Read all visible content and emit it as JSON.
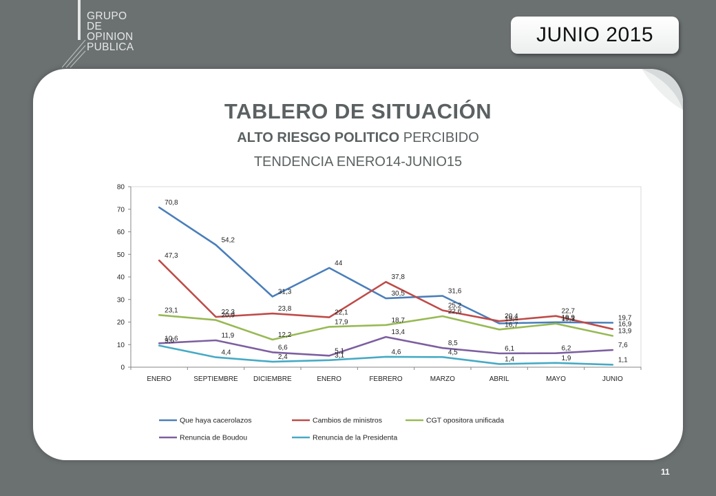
{
  "header": {
    "logo_lines": [
      "GRUPO",
      "DE",
      "OPINION",
      "PUBLICA"
    ],
    "month_label": "JUNIO 2015"
  },
  "title": {
    "main": "TABLERO DE SITUACIÓN",
    "sub_bold": "ALTO RIESGO POLITICO",
    "sub_rest": " PERCIBIDO",
    "sub2": "TENDENCIA ENERO14-JUNIO15"
  },
  "page_number": "11",
  "chart_data": {
    "type": "line",
    "categories": [
      "ENERO",
      "SEPTIEMBRE",
      "DICIEMBRE",
      "ENERO",
      "FEBRERO",
      "MARZO",
      "ABRIL",
      "MAYO",
      "JUNIO"
    ],
    "ylim": [
      0,
      80
    ],
    "yticks": [
      0,
      10,
      20,
      30,
      40,
      50,
      60,
      70,
      80
    ],
    "grid": false,
    "legend_position": "bottom",
    "series": [
      {
        "name": "Que haya cacerolazos",
        "color": "#4a7ebb",
        "values": [
          70.8,
          54.2,
          31.3,
          44,
          30.5,
          31.6,
          19.4,
          19.9,
          19.7
        ],
        "labels": [
          "70,8",
          "54,2",
          "31,3",
          "44",
          "30,5",
          "31,6",
          "19,4",
          "19,9",
          "19,7"
        ]
      },
      {
        "name": "Cambios de ministros",
        "color": "#be4b48",
        "values": [
          47.3,
          22.3,
          23.8,
          22.1,
          37.8,
          25.2,
          20.4,
          22.7,
          16.9
        ],
        "labels": [
          "47,3",
          "22,3",
          "23,8",
          "22,1",
          "37,8",
          "25,2",
          "20,4",
          "22,7",
          "16,9"
        ]
      },
      {
        "name": "CGT opositora unificada",
        "color": "#98b954",
        "values": [
          23.1,
          20.9,
          12.2,
          17.9,
          18.7,
          22.6,
          16.7,
          19.3,
          13.9
        ],
        "labels": [
          "23,1",
          "20,9",
          "12,2",
          "17,9",
          "18,7",
          "22,6",
          "16,7",
          "19,3",
          "13,9"
        ]
      },
      {
        "name": "Renuncia de Boudou",
        "color": "#7d5fa0",
        "values": [
          10.6,
          11.9,
          6.6,
          5.1,
          13.4,
          8.5,
          6.1,
          6.2,
          7.6
        ],
        "labels": [
          "10,6",
          "11,9",
          "6,6",
          "5,1",
          "13,4",
          "8,5",
          "6,1",
          "6,2",
          "7,6"
        ]
      },
      {
        "name": "Renuncia de la Presidenta",
        "color": "#46aac5",
        "values": [
          9.6,
          4.4,
          2.4,
          3.1,
          4.6,
          4.5,
          1.4,
          1.9,
          1.1
        ],
        "labels": [
          "9,6",
          "4,4",
          "2,4",
          "3,1",
          "4,6",
          "4,5",
          "1,4",
          "1,9",
          "1,1"
        ]
      }
    ]
  }
}
